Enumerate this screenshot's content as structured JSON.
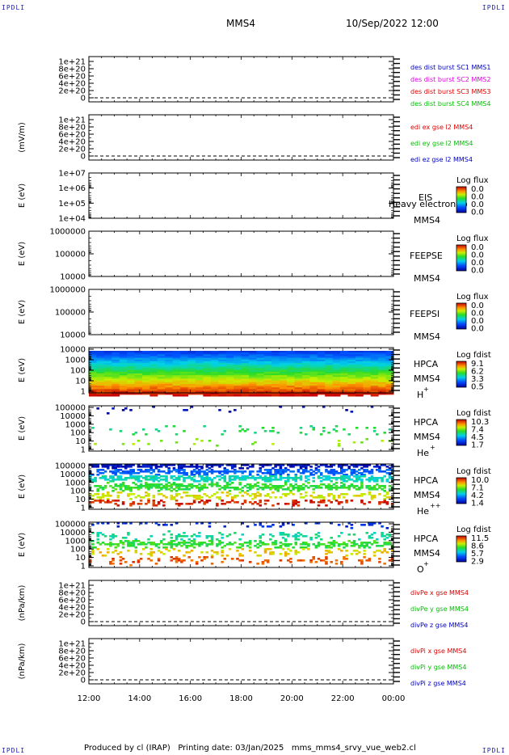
{
  "corner_label": "IPDLI",
  "header": {
    "spacecraft": "MMS4",
    "datetime": "10/Sep/2022 12:00"
  },
  "footer": {
    "text": "Produced by cl (IRAP)   Printing date: 03/Jan/2025   mms_mms4_srvy_vue_web2.cl"
  },
  "time_axis": {
    "labels": [
      "12:00",
      "14:00",
      "16:00",
      "18:00",
      "20:00",
      "22:00",
      "00:00"
    ]
  },
  "colors": {
    "blue": "#0000c0",
    "magenta": "#e000e0",
    "red": "#e00000",
    "green": "#00c000"
  },
  "chart_data": [
    {
      "type": "line",
      "ylabel": "",
      "yticks": [
        "1e+21",
        "8e+20",
        "6e+20",
        "4e+20",
        "2e+20",
        "0"
      ],
      "series_labels": [
        {
          "text": "des dist burst SC1 MMS1",
          "color": "blue"
        },
        {
          "text": "des dist burst SC2 MMS2",
          "color": "magenta"
        },
        {
          "text": "des dist burst SC3 MMS3",
          "color": "red"
        },
        {
          "text": "des dist burst SC4 MMS4",
          "color": "green"
        }
      ]
    },
    {
      "type": "line",
      "ylabel": "(mV/m)",
      "yticks": [
        "1e+21",
        "8e+20",
        "6e+20",
        "4e+20",
        "2e+20",
        "0"
      ],
      "series_labels": [
        {
          "text": "edi ex gse l2 MMS4",
          "color": "red"
        },
        {
          "text": "edi ey gse l2 MMS4",
          "color": "green"
        },
        {
          "text": "edi ez gse l2 MMS4",
          "color": "blue"
        }
      ]
    },
    {
      "type": "heatmap",
      "ylabel": "E (eV)",
      "yticks": [
        "1e+07",
        "1e+06",
        "1e+05",
        "1e+04"
      ],
      "log_scale": true,
      "instrument": "EIS",
      "spacecraft": "MMS4",
      "extra": "Heavy electron to",
      "colorbar_title": "Log flux",
      "colorbar_ticks": [
        "0.0",
        "0.0",
        "0.0",
        "0.0"
      ],
      "filled": false
    },
    {
      "type": "heatmap",
      "ylabel": "E (eV)",
      "yticks": [
        "1000000",
        "100000",
        "10000"
      ],
      "log_scale": true,
      "instrument": "FEEPSE",
      "spacecraft": "MMS4",
      "colorbar_title": "Log flux",
      "colorbar_ticks": [
        "0.0",
        "0.0",
        "0.0",
        "0.0"
      ],
      "filled": false
    },
    {
      "type": "heatmap",
      "ylabel": "E (eV)",
      "yticks": [
        "1000000",
        "100000",
        "10000"
      ],
      "log_scale": true,
      "instrument": "FEEPSI",
      "spacecraft": "MMS4",
      "colorbar_title": "Log flux",
      "colorbar_ticks": [
        "0.0",
        "0.0",
        "0.0",
        "0.0"
      ],
      "filled": false
    },
    {
      "type": "heatmap",
      "ylabel": "E (eV)",
      "yticks": [
        "10000",
        "1000",
        "100",
        "10",
        "1"
      ],
      "log_scale": true,
      "instrument": "HPCA",
      "spacecraft": "MMS4",
      "species": "H",
      "charge": "+",
      "colorbar_title": "Log fdist",
      "colorbar_ticks": [
        "9.1",
        "6.2",
        "3.3",
        "0.5"
      ],
      "filled": true,
      "pattern": "h"
    },
    {
      "type": "heatmap",
      "ylabel": "E (eV)",
      "yticks": [
        "100000",
        "10000",
        "1000",
        "100",
        "10",
        "1"
      ],
      "log_scale": true,
      "instrument": "HPCA",
      "spacecraft": "MMS4",
      "species": "He",
      "charge": "+",
      "colorbar_title": "Log fdist",
      "colorbar_ticks": [
        "10.3",
        "7.4",
        "4.5",
        "1.7"
      ],
      "filled": true,
      "pattern": "he1"
    },
    {
      "type": "heatmap",
      "ylabel": "E (eV)",
      "yticks": [
        "100000",
        "10000",
        "1000",
        "100",
        "10",
        "1"
      ],
      "log_scale": true,
      "instrument": "HPCA",
      "spacecraft": "MMS4",
      "species": "He",
      "charge": "++",
      "colorbar_title": "Log fdist",
      "colorbar_ticks": [
        "10.0",
        "7.1",
        "4.2",
        "1.4"
      ],
      "filled": true,
      "pattern": "he2"
    },
    {
      "type": "heatmap",
      "ylabel": "E (eV)",
      "yticks": [
        "100000",
        "10000",
        "1000",
        "100",
        "10",
        "1"
      ],
      "log_scale": true,
      "instrument": "HPCA",
      "spacecraft": "MMS4",
      "species": "O",
      "charge": "+",
      "colorbar_title": "Log fdist",
      "colorbar_ticks": [
        "11.5",
        "8.6",
        "5.7",
        "2.9"
      ],
      "filled": true,
      "pattern": "o"
    },
    {
      "type": "line",
      "ylabel": "(nPa/km)",
      "yticks": [
        "1e+21",
        "8e+20",
        "6e+20",
        "4e+20",
        "2e+20",
        "0"
      ],
      "series_labels": [
        {
          "text": "divPe x gse MMS4",
          "color": "red"
        },
        {
          "text": "divPe y gse MMS4",
          "color": "green"
        },
        {
          "text": "divPe z gse MMS4",
          "color": "blue"
        }
      ]
    },
    {
      "type": "line",
      "ylabel": "(nPa/km)",
      "yticks": [
        "1e+21",
        "8e+20",
        "6e+20",
        "4e+20",
        "2e+20",
        "0"
      ],
      "series_labels": [
        {
          "text": "divPi x gse MMS4",
          "color": "red"
        },
        {
          "text": "divPi y gse MMS4",
          "color": "green"
        },
        {
          "text": "divPi z gse MMS4",
          "color": "blue"
        }
      ]
    }
  ]
}
